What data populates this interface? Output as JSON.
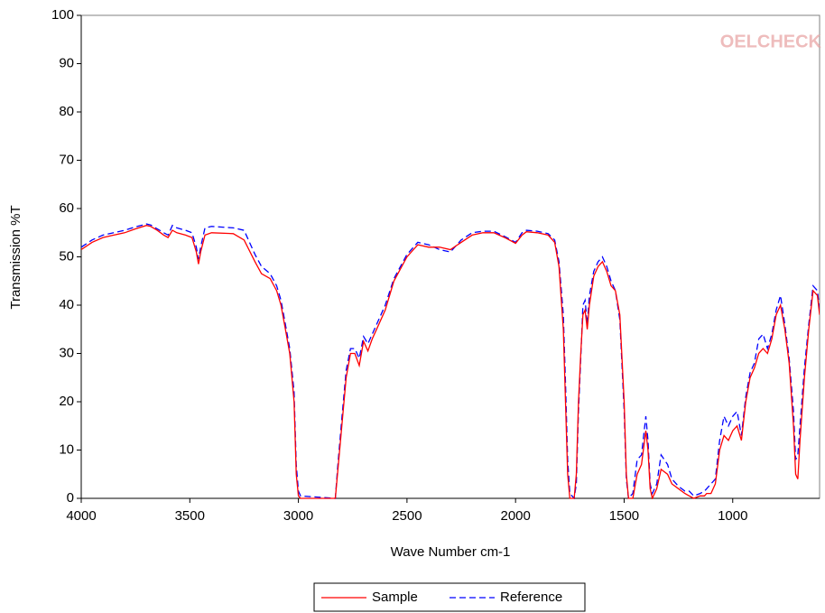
{
  "chart_data": {
    "type": "line",
    "x_label": "Wave Number cm-1",
    "y_label": "Transmission %T",
    "watermark": "OELCHECK",
    "x": [
      4000,
      3950,
      3900,
      3850,
      3800,
      3750,
      3700,
      3680,
      3650,
      3620,
      3600,
      3580,
      3560,
      3520,
      3490,
      3470,
      3460,
      3450,
      3430,
      3400,
      3300,
      3250,
      3200,
      3170,
      3130,
      3100,
      3080,
      3060,
      3040,
      3020,
      3010,
      3000,
      2990,
      2830,
      2820,
      2800,
      2780,
      2760,
      2740,
      2720,
      2700,
      2680,
      2660,
      2640,
      2600,
      2560,
      2500,
      2450,
      2400,
      2350,
      2300,
      2250,
      2200,
      2150,
      2100,
      2050,
      2000,
      1970,
      1950,
      1900,
      1850,
      1820,
      1800,
      1780,
      1770,
      1760,
      1750,
      1730,
      1720,
      1710,
      1700,
      1690,
      1680,
      1670,
      1660,
      1640,
      1620,
      1600,
      1580,
      1560,
      1540,
      1520,
      1500,
      1490,
      1480,
      1460,
      1440,
      1420,
      1400,
      1390,
      1380,
      1370,
      1350,
      1330,
      1300,
      1280,
      1250,
      1220,
      1200,
      1180,
      1150,
      1130,
      1120,
      1100,
      1080,
      1060,
      1040,
      1020,
      1000,
      980,
      960,
      940,
      920,
      900,
      880,
      860,
      840,
      820,
      800,
      780,
      760,
      740,
      720,
      710,
      700,
      690,
      670,
      650,
      630,
      610,
      600
    ],
    "series": [
      {
        "name": "Sample",
        "color": "#ff0000",
        "dash": false,
        "values": [
          51.5,
          53,
          54,
          54.5,
          55,
          55.8,
          56.5,
          56.3,
          55.5,
          54.5,
          54,
          55.5,
          55,
          54.5,
          54,
          51,
          48.5,
          51,
          54.5,
          55,
          54.8,
          53.5,
          49,
          46.5,
          45.5,
          43,
          40,
          35,
          30,
          20,
          5,
          0.5,
          0,
          0,
          5,
          15,
          25,
          30,
          30,
          27.5,
          32.5,
          30.5,
          33,
          35,
          39,
          45,
          50,
          52.5,
          52,
          52,
          51.5,
          53,
          54.5,
          55,
          55,
          54,
          52.8,
          54.5,
          55.2,
          55,
          54.5,
          53,
          48,
          35,
          20,
          5,
          0,
          0,
          5,
          20,
          30,
          38,
          39,
          35,
          40,
          46,
          48,
          49,
          47,
          44,
          43,
          38,
          20,
          5,
          0,
          0,
          5,
          7,
          14,
          10,
          2,
          0,
          2,
          6,
          5,
          3,
          2,
          1,
          0.5,
          0,
          0.5,
          0.5,
          1,
          1,
          3,
          10,
          13,
          12,
          14,
          15,
          12,
          20,
          25,
          27,
          30,
          31,
          30,
          33,
          38,
          40,
          35,
          28,
          15,
          5,
          4,
          12,
          25,
          35,
          43,
          42,
          38
        ]
      },
      {
        "name": "Reference",
        "color": "#0000ff",
        "dash": true,
        "values": [
          52,
          53.5,
          54.5,
          55,
          55.5,
          56.2,
          56.8,
          56.6,
          55.8,
          55,
          54.5,
          56.5,
          56,
          55.5,
          55,
          52,
          49.5,
          52,
          56,
          56.3,
          56,
          55.5,
          50.5,
          48,
          46.5,
          44,
          41,
          36,
          31,
          22,
          7,
          1.5,
          0.5,
          0,
          6,
          16.5,
          26.5,
          31,
          31,
          29,
          33.5,
          32,
          34,
          36,
          40,
          45.5,
          50.5,
          53,
          52.5,
          51.5,
          51,
          53.5,
          55,
          55.3,
          55.3,
          54.2,
          53,
          55,
          55.5,
          55.3,
          54.8,
          53.5,
          49,
          38,
          24,
          8,
          1,
          0,
          3,
          18,
          29,
          40,
          41,
          36,
          42,
          47,
          49,
          50,
          48,
          45,
          43,
          37,
          18,
          4,
          0,
          1,
          8,
          9,
          17,
          12,
          3,
          1,
          3,
          9,
          7,
          4,
          2.5,
          1.5,
          1.5,
          0.5,
          1,
          1.5,
          2,
          3,
          4,
          12,
          17,
          15,
          17,
          18,
          13,
          21,
          26,
          28,
          33,
          34,
          31,
          34,
          39,
          42,
          36,
          29,
          18,
          8,
          9,
          15,
          27,
          36,
          44,
          43,
          39
        ]
      }
    ],
    "xlim": [
      4000,
      600
    ],
    "ylim": [
      0,
      100
    ],
    "xticks": [
      4000,
      3500,
      3000,
      2500,
      2000,
      1500,
      1000
    ],
    "yticks": [
      0,
      10,
      20,
      30,
      40,
      50,
      60,
      70,
      80,
      90,
      100
    ],
    "grid": false,
    "legend": "bottom"
  }
}
